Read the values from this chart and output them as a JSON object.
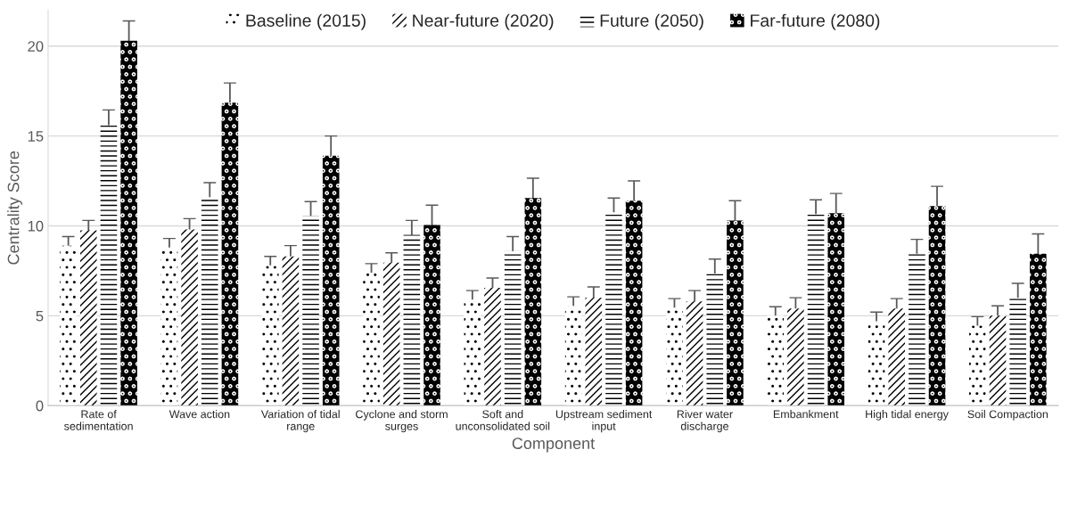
{
  "chart_data": {
    "type": "bar",
    "xlabel": "Component",
    "ylabel": "Centrality Score",
    "categories": [
      "Rate of sedimentation",
      "Wave action",
      "Variation of tidal range",
      "Cyclone and storm surges",
      "Soft and unconsolidated soil",
      "Upstream sediment input",
      "River water discharge",
      "Embankment",
      "High tidal energy",
      "Soil Compaction"
    ],
    "series": [
      {
        "name": "Baseline (2015)",
        "color": "#ffffff",
        "values": [
          8.9,
          8.8,
          7.8,
          7.4,
          5.9,
          5.55,
          5.45,
          5.0,
          4.7,
          4.45
        ],
        "errors": [
          0.5,
          0.5,
          0.5,
          0.5,
          0.5,
          0.5,
          0.5,
          0.5,
          0.5,
          0.5
        ]
      },
      {
        "name": "Near-future (2020)",
        "color": "#ffffff",
        "values": [
          9.75,
          9.8,
          8.3,
          7.95,
          6.55,
          6.0,
          5.8,
          5.4,
          5.4,
          5.0
        ],
        "errors": [
          0.55,
          0.6,
          0.6,
          0.55,
          0.55,
          0.6,
          0.6,
          0.6,
          0.55,
          0.55
        ]
      },
      {
        "name": "Future (2050)",
        "color": "#ffffff",
        "values": [
          15.6,
          11.6,
          10.55,
          9.5,
          8.6,
          10.75,
          7.35,
          10.65,
          8.45,
          6.0
        ],
        "errors": [
          0.85,
          0.8,
          0.8,
          0.8,
          0.8,
          0.8,
          0.8,
          0.8,
          0.8,
          0.8
        ]
      },
      {
        "name": "Far-future (2080)",
        "color": "#000000",
        "values": [
          20.3,
          16.85,
          13.9,
          10.05,
          11.55,
          11.4,
          10.3,
          10.7,
          11.1,
          8.45
        ],
        "errors": [
          1.1,
          1.1,
          1.1,
          1.1,
          1.1,
          1.1,
          1.1,
          1.1,
          1.1,
          1.1
        ]
      }
    ],
    "ylim": [
      0,
      22
    ],
    "yticks": [
      0,
      5,
      10,
      15,
      20
    ],
    "grid": "y",
    "legend": "top"
  }
}
